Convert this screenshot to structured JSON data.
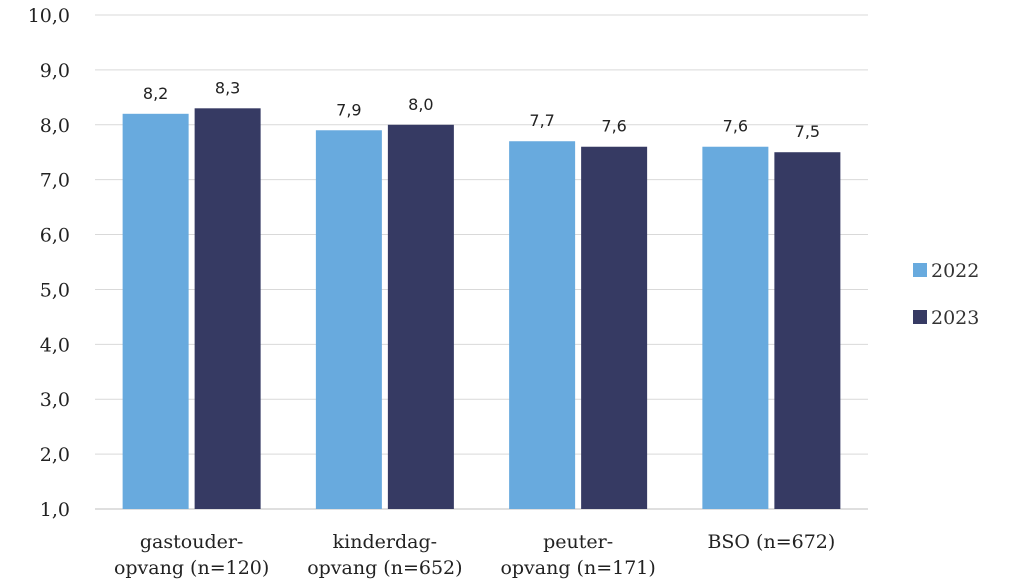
{
  "chart_data": {
    "type": "bar",
    "categories": [
      [
        "gastouder-",
        "opvang (n=120)"
      ],
      [
        "kinderdag-",
        "opvang (n=652)"
      ],
      [
        "peuter-",
        "opvang (n=171)"
      ],
      [
        "BSO (n=672)"
      ]
    ],
    "series": [
      {
        "name": "2022",
        "color": "#68aade",
        "values": [
          8.2,
          7.9,
          7.7,
          7.6
        ],
        "labels": [
          "8,2",
          "7,9",
          "7,7",
          "7,6"
        ]
      },
      {
        "name": "2023",
        "color": "#363a63",
        "values": [
          8.3,
          8.0,
          7.6,
          7.5
        ],
        "labels": [
          "8,3",
          "8,0",
          "7,6",
          "7,5"
        ]
      }
    ],
    "ylim": [
      1.0,
      10.0
    ],
    "yticks": [
      "1,0",
      "2,0",
      "3,0",
      "4,0",
      "5,0",
      "6,0",
      "7,0",
      "8,0",
      "9,0",
      "10,0"
    ],
    "grid": true,
    "legend_position": "right",
    "title": "",
    "xlabel": "",
    "ylabel": ""
  }
}
